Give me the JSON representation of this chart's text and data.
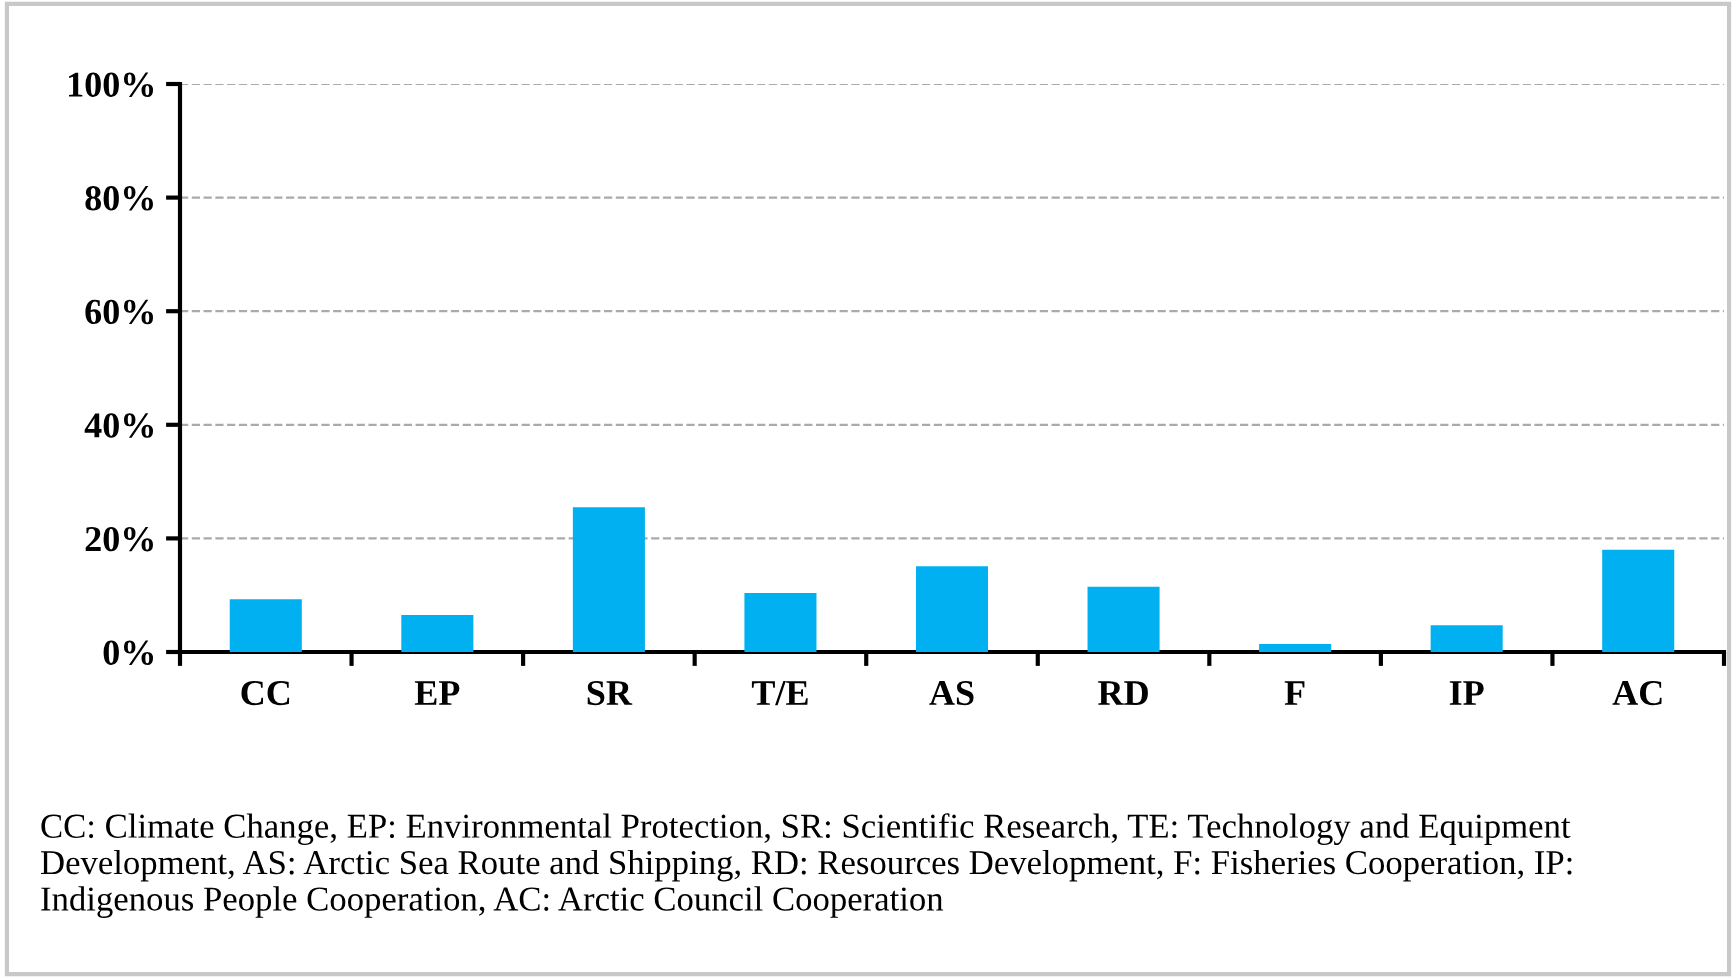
{
  "chart_data": {
    "type": "bar",
    "categories": [
      "CC",
      "EP",
      "SR",
      "T/E",
      "AS",
      "RD",
      "F",
      "IP",
      "AC"
    ],
    "values": [
      9.3,
      6.5,
      25.5,
      10.4,
      15.1,
      11.5,
      1.4,
      4.7,
      18.0
    ],
    "color": "#00b0f0",
    "ylim": [
      0,
      100
    ],
    "yticks": [
      {
        "value": 0,
        "label": "0%"
      },
      {
        "value": 20,
        "label": "20%"
      },
      {
        "value": 40,
        "label": "40%"
      },
      {
        "value": 60,
        "label": "60%"
      },
      {
        "value": 80,
        "label": "80%"
      },
      {
        "value": 100,
        "label": "100%"
      }
    ],
    "grid": "y",
    "annotations": [
      "CC: Climate Change, EP: Environmental Protection, SR: Scientific Research, TE: Technology and Equipment Development, AS: Arctic Sea Route and Shipping, RD: Resources Development, F: Fisheries Cooperation, IP: Indigenous People Cooperation, AC: Arctic Council Cooperation"
    ]
  }
}
